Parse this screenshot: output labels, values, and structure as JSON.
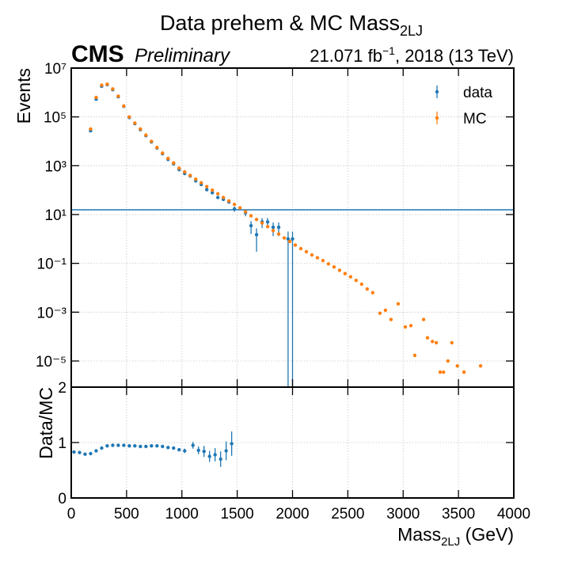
{
  "chart_data": [
    {
      "type": "errorbar",
      "title": {
        "text": "Data prehem & MC Mass",
        "subscript": "2LJ"
      },
      "experiment": "CMS",
      "status": "Preliminary",
      "lumi": {
        "text": "21.071 fb",
        "superscript": "−1",
        "suffix": ", 2018 (13 TeV)"
      },
      "ylabel": "Events",
      "yscale": "log",
      "xlim": [
        0,
        4000
      ],
      "xticks": [
        0,
        500,
        1000,
        1500,
        2000,
        2500,
        3000,
        3500,
        4000
      ],
      "ylim": [
        8.5e-07,
        10000000.0
      ],
      "yticks": [
        {
          "value": 10000000.0,
          "label": "10⁷"
        },
        {
          "value": 100000.0,
          "label": "10⁵"
        },
        {
          "value": 1000.0,
          "label": "10³"
        },
        {
          "value": 10,
          "label": "10¹"
        },
        {
          "value": 0.1,
          "label": "10⁻¹"
        },
        {
          "value": 0.001,
          "label": "10⁻³"
        },
        {
          "value": 1e-05,
          "label": "10⁻⁵"
        }
      ],
      "grid": true,
      "legend": "upper right",
      "hline": {
        "value": 15.6,
        "color": "#1f77b4"
      },
      "series": [
        {
          "name": "data",
          "color": "#1f77b4",
          "x": [
            175,
            225,
            275,
            325,
            375,
            425,
            475,
            525,
            575,
            625,
            675,
            725,
            775,
            825,
            875,
            925,
            975,
            1025,
            1075,
            1125,
            1175,
            1225,
            1275,
            1325,
            1375,
            1425,
            1475,
            1575,
            1625,
            1675,
            1725,
            1775,
            1825,
            1875,
            1960,
            2000
          ],
          "values": [
            27000,
            530000,
            1800000,
            2100000,
            1300000,
            670000,
            270000,
            94000,
            53000,
            30000,
            17000,
            9400,
            5300,
            3100,
            1800,
            1200,
            690,
            480,
            380,
            240,
            170,
            105,
            78,
            50,
            42,
            33,
            17,
            12,
            3.5,
            1.5,
            5,
            5,
            3,
            3,
            1,
            1
          ],
          "yerr": [
            160,
            730,
            1340,
            1450,
            1140,
            820,
            520,
            310,
            230,
            170,
            130,
            97,
            73,
            56,
            42,
            35,
            26,
            22,
            19,
            15,
            13,
            10,
            9,
            7,
            6.5,
            5.7,
            4.1,
            3.5,
            1.9,
            1.2,
            2.2,
            2.2,
            1.7,
            1.7,
            1,
            1
          ]
        },
        {
          "name": "MC",
          "color": "#ff7f0e",
          "x": [
            175,
            225,
            275,
            325,
            375,
            425,
            475,
            525,
            575,
            625,
            675,
            725,
            775,
            825,
            875,
            925,
            975,
            1025,
            1075,
            1125,
            1175,
            1225,
            1275,
            1325,
            1375,
            1425,
            1475,
            1525,
            1575,
            1625,
            1675,
            1725,
            1775,
            1825,
            1875,
            1925,
            1975,
            2025,
            2075,
            2125,
            2175,
            2225,
            2275,
            2325,
            2375,
            2425,
            2475,
            2525,
            2575,
            2625,
            2675,
            2725,
            2790,
            2840,
            2890,
            2955,
            3020,
            3070,
            3105,
            3185,
            3220,
            3265,
            3300,
            3335,
            3365,
            3405,
            3440,
            3490,
            3550,
            3700
          ],
          "values": [
            32000,
            630000,
            2000000,
            2200000,
            1400000,
            710000,
            280000,
            100000,
            56000,
            32000,
            18000,
            10000,
            5600,
            3300,
            2000,
            1300,
            790,
            560,
            400,
            280,
            200,
            140,
            100,
            71,
            50,
            36,
            26,
            19,
            13,
            8.9,
            6.3,
            4.5,
            3.2,
            2.2,
            1.6,
            1.1,
            0.79,
            0.56,
            0.4,
            0.3,
            0.22,
            0.17,
            0.13,
            0.095,
            0.071,
            0.052,
            0.038,
            0.028,
            0.02,
            0.014,
            0.0089,
            0.0063,
            0.0009,
            0.0012,
            0.0005,
            0.0022,
            0.00025,
            0.00028,
            1.7e-05,
            0.0005,
            8.9e-05,
            6.3e-05,
            5.6e-05,
            3.5e-06,
            3.5e-06,
            1e-05,
            5.6e-05,
            6.3e-06,
            3.5e-06,
            6.3e-06
          ]
        }
      ]
    },
    {
      "type": "errorbar",
      "ylabel": "Data/MC",
      "xlabel": {
        "text": "Mass",
        "subscript": "2LJ",
        "suffix": " (GeV)"
      },
      "xlim": [
        0,
        4000
      ],
      "xticks": [
        0,
        500,
        1000,
        1500,
        2000,
        2500,
        3000,
        3500,
        4000
      ],
      "ylim": [
        0,
        2
      ],
      "yticks": [
        0,
        1,
        2
      ],
      "grid": true,
      "series": [
        {
          "color": "#1f77b4",
          "x": [
            25,
            75,
            125,
            175,
            225,
            275,
            325,
            375,
            425,
            475,
            525,
            575,
            625,
            675,
            725,
            775,
            825,
            875,
            925,
            975,
            1025,
            1100,
            1150,
            1200,
            1250,
            1300,
            1350,
            1400,
            1450
          ],
          "values": [
            0.83,
            0.82,
            0.79,
            0.8,
            0.85,
            0.9,
            0.94,
            0.95,
            0.95,
            0.95,
            0.94,
            0.94,
            0.93,
            0.93,
            0.94,
            0.94,
            0.93,
            0.91,
            0.9,
            0.87,
            0.85,
            0.95,
            0.86,
            0.84,
            0.75,
            0.78,
            0.7,
            0.85,
            0.98
          ],
          "yerr": [
            0.01,
            0.01,
            0.01,
            0.01,
            0.01,
            0.01,
            0.01,
            0.01,
            0.01,
            0.01,
            0.01,
            0.01,
            0.01,
            0.01,
            0.01,
            0.01,
            0.02,
            0.02,
            0.02,
            0.03,
            0.04,
            0.06,
            0.07,
            0.1,
            0.1,
            0.12,
            0.14,
            0.17,
            0.22
          ]
        }
      ]
    }
  ]
}
